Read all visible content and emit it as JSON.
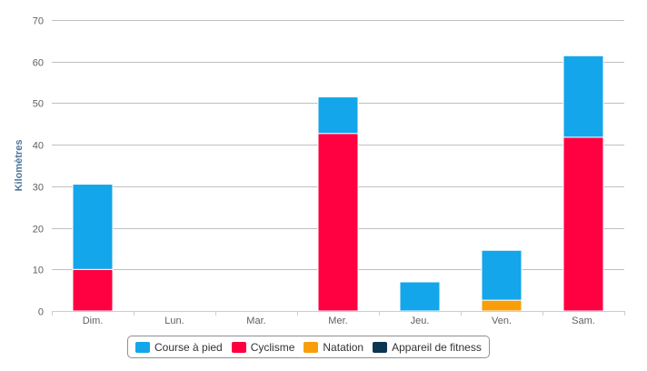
{
  "chart_data": {
    "type": "bar",
    "stacked": true,
    "categories": [
      "Dim.",
      "Lun.",
      "Mar.",
      "Mer.",
      "Jeu.",
      "Ven.",
      "Sam."
    ],
    "series": [
      {
        "name": "Course à pied",
        "color": "#13a6ea",
        "values": [
          20.5,
          0,
          0,
          8.8,
          7.0,
          12.0,
          19.6
        ]
      },
      {
        "name": "Cyclisme",
        "color": "#ff0040",
        "values": [
          10.0,
          0,
          0,
          42.7,
          0,
          0,
          41.8
        ]
      },
      {
        "name": "Natation",
        "color": "#f79e09",
        "values": [
          0,
          0,
          0,
          0,
          0,
          2.6,
          0
        ]
      },
      {
        "name": "Appareil de fitness",
        "color": "#0c3552",
        "values": [
          0,
          0,
          0,
          0,
          0,
          0,
          0
        ]
      }
    ],
    "ylabel": "Kilomètres",
    "ylim": [
      0,
      70
    ],
    "yticks": [
      0,
      10,
      20,
      30,
      40,
      50,
      60,
      70
    ],
    "grid": true,
    "legend_position": "bottom-center"
  }
}
